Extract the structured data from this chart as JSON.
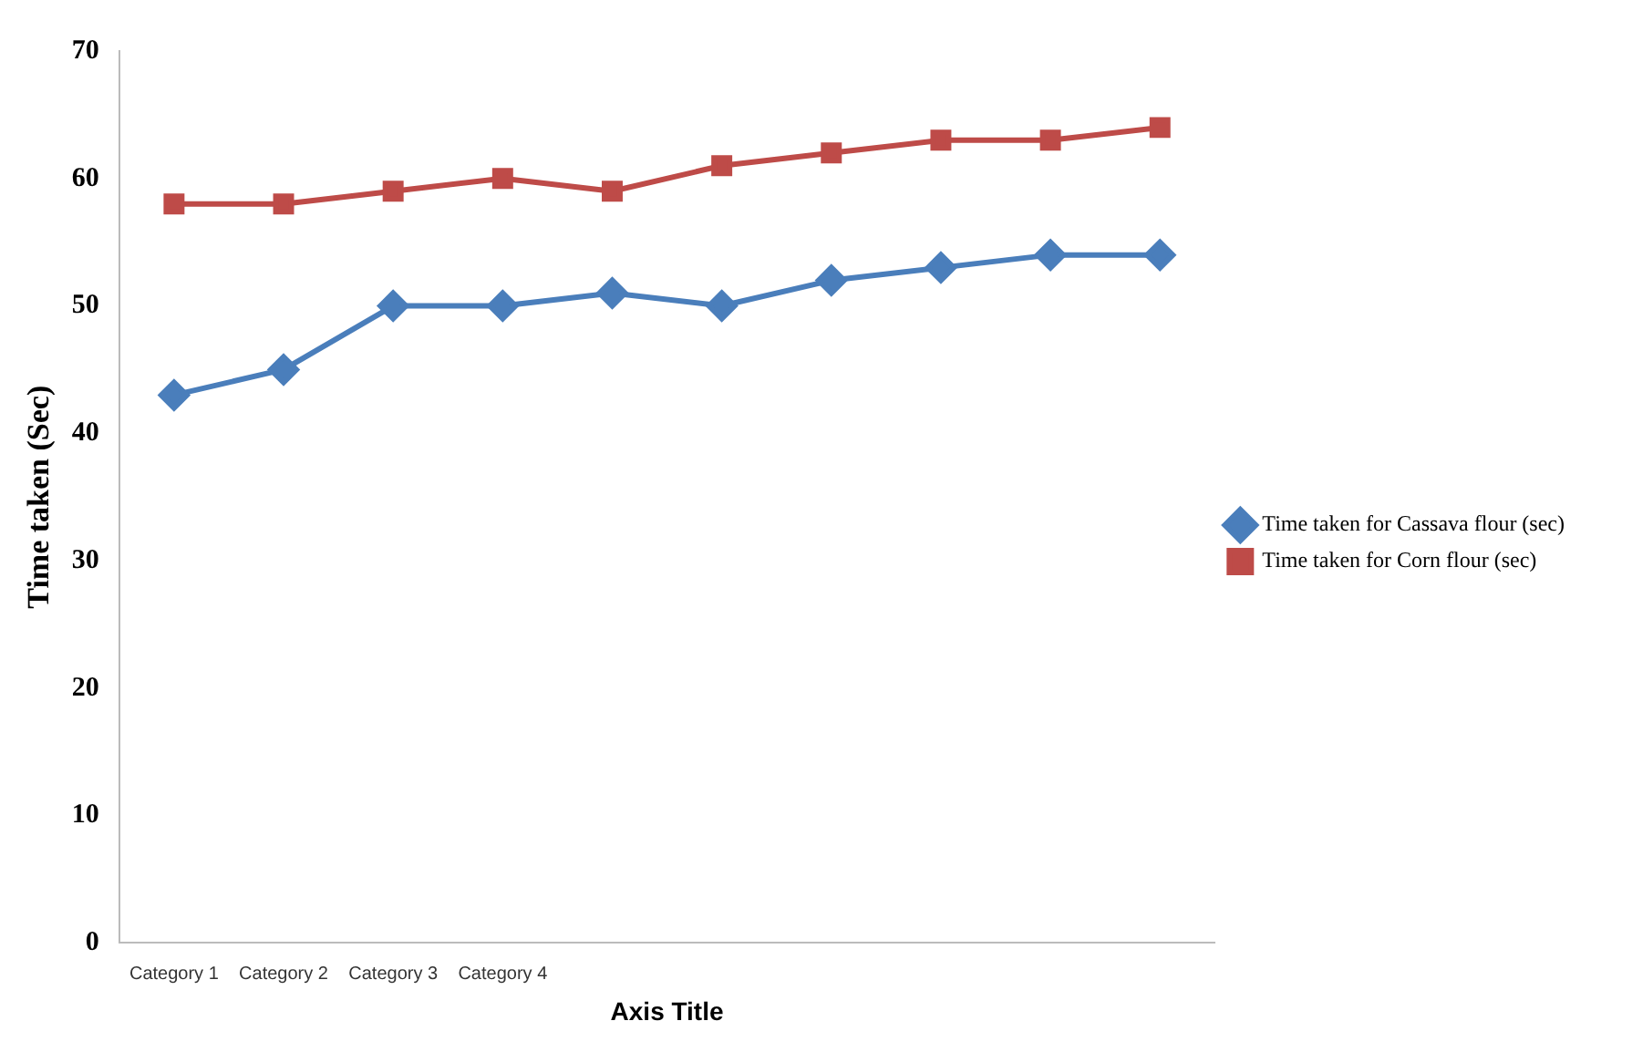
{
  "chart_data": {
    "type": "line",
    "categories": [
      "Category 1",
      "Category 2",
      "Category 3",
      "Category 4",
      null,
      null,
      null,
      null,
      null,
      null
    ],
    "xlabel": "Axis Title",
    "ylabel": "Time taken (Sec)",
    "ylim": [
      0,
      70
    ],
    "yticks": [
      0,
      10,
      20,
      30,
      40,
      50,
      60,
      70
    ],
    "grid": false,
    "legend": "right",
    "line_style": "solid",
    "series": [
      {
        "name": "Time taken for Cassava flour (sec)",
        "color": "#4a7ebb",
        "marker": "diamond",
        "values": [
          43,
          45,
          50,
          50,
          51,
          50,
          52,
          53,
          54,
          54
        ]
      },
      {
        "name": "Time taken for Corn flour (sec)",
        "color": "#be4b48",
        "marker": "square",
        "values": [
          58,
          58,
          59,
          60,
          59,
          61,
          62,
          63,
          63,
          64
        ]
      }
    ]
  }
}
